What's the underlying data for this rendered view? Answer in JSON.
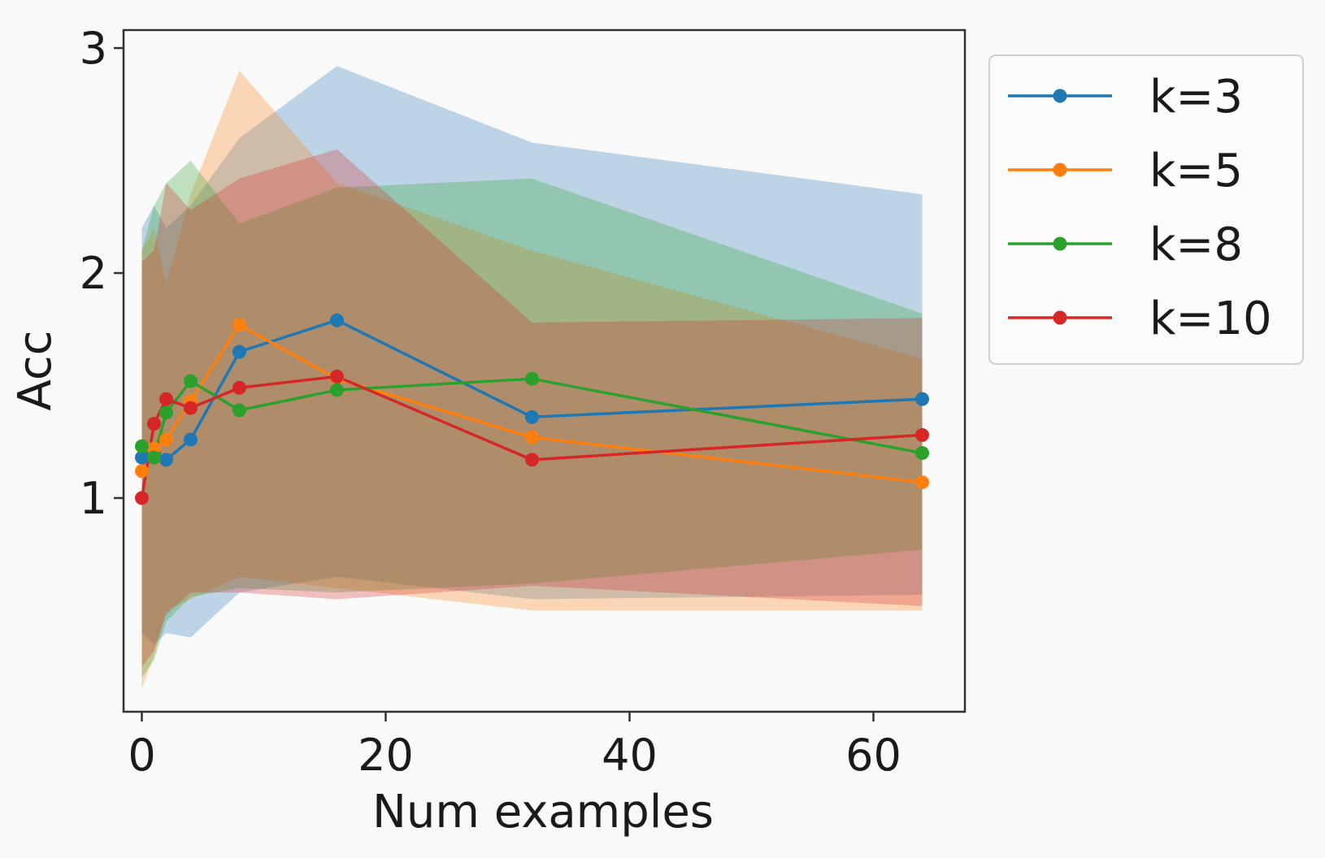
{
  "chart_data": {
    "type": "line",
    "title": "",
    "xlabel": "Num examples",
    "ylabel": "Acc",
    "xlim": [
      -1.5,
      67.5
    ],
    "ylim": [
      0.05,
      3.08
    ],
    "xticks": [
      0,
      20,
      40,
      60
    ],
    "yticks": [
      1,
      2,
      3
    ],
    "grid": false,
    "legend": "outside-top-right",
    "x": [
      0,
      1,
      2,
      4,
      8,
      16,
      32,
      64
    ],
    "series": [
      {
        "name": "k=3",
        "color": "#1f77b4",
        "values": [
          1.18,
          1.2,
          1.17,
          1.26,
          1.65,
          1.79,
          1.36,
          1.44
        ],
        "band_upper": [
          2.2,
          2.3,
          2.2,
          2.3,
          2.6,
          2.92,
          2.58,
          2.35
        ],
        "band_lower": [
          0.4,
          0.35,
          0.4,
          0.38,
          0.58,
          0.65,
          0.55,
          0.57
        ]
      },
      {
        "name": "k=5",
        "color": "#ff7f0e",
        "values": [
          1.12,
          1.22,
          1.26,
          1.43,
          1.77,
          1.53,
          1.27,
          1.07
        ],
        "band_upper": [
          2.1,
          2.2,
          1.95,
          2.35,
          2.9,
          2.4,
          2.1,
          1.62
        ],
        "band_lower": [
          0.15,
          0.3,
          0.5,
          0.55,
          0.65,
          0.6,
          0.5,
          0.5
        ]
      },
      {
        "name": "k=8",
        "color": "#2ca02c",
        "values": [
          1.23,
          1.18,
          1.38,
          1.52,
          1.39,
          1.48,
          1.53,
          1.2
        ],
        "band_upper": [
          2.1,
          2.3,
          2.4,
          2.5,
          2.22,
          2.38,
          2.42,
          1.82
        ],
        "band_lower": [
          0.2,
          0.28,
          0.45,
          0.56,
          0.6,
          0.58,
          0.62,
          0.77
        ]
      },
      {
        "name": "k=10",
        "color": "#d62728",
        "values": [
          1.0,
          1.33,
          1.44,
          1.4,
          1.49,
          1.54,
          1.17,
          1.28
        ],
        "band_upper": [
          2.05,
          2.1,
          2.4,
          2.28,
          2.42,
          2.55,
          1.78,
          1.8
        ],
        "band_lower": [
          0.25,
          0.32,
          0.48,
          0.58,
          0.58,
          0.55,
          0.61,
          0.52
        ]
      }
    ]
  }
}
